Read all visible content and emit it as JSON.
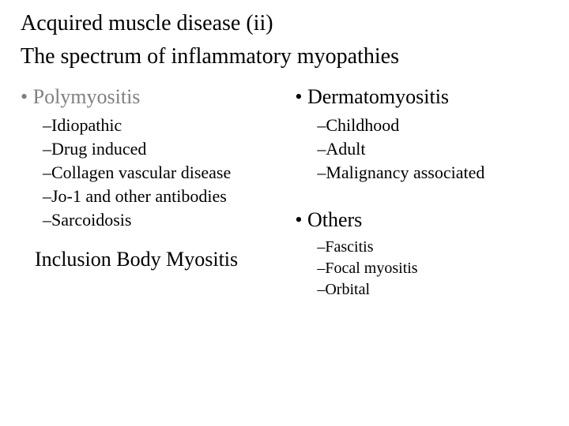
{
  "title": "Acquired muscle disease (ii)",
  "subtitle": "The spectrum of inflammatory myopathies",
  "left": {
    "heading": "• Polymyositis",
    "items": [
      "–Idiopathic",
      "–Drug induced",
      "–Collagen vascular disease",
      "–Jo-1 and other antibodies",
      "–Sarcoidosis"
    ],
    "footer": "Inclusion Body Myositis"
  },
  "right": {
    "heading1": "• Dermatomyositis",
    "items1": [
      "–Childhood",
      "–Adult",
      "–Malignancy associated"
    ],
    "heading2": "• Others",
    "items2": [
      "–Fascitis",
      "–Focal myositis",
      "–Orbital"
    ]
  }
}
